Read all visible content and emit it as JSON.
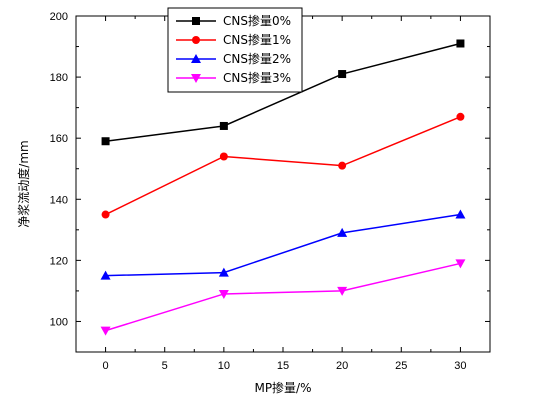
{
  "chart_data": {
    "type": "line",
    "xlabel": "MP掺量/%",
    "ylabel": "净浆流动度/mm",
    "xlim": [
      -2.5,
      32.5
    ],
    "ylim": [
      90,
      200
    ],
    "xticks": [
      0,
      5,
      10,
      15,
      20,
      25,
      30
    ],
    "yticks": [
      100,
      120,
      140,
      160,
      180,
      200
    ],
    "x": [
      0,
      10,
      20,
      30
    ],
    "series": [
      {
        "name": "CNS掺量0%",
        "values": [
          159,
          164,
          181,
          191
        ],
        "color": "#000000",
        "marker": "square"
      },
      {
        "name": "CNS掺量1%",
        "values": [
          135,
          154,
          151,
          167
        ],
        "color": "#ff0000",
        "marker": "circle"
      },
      {
        "name": "CNS掺量2%",
        "values": [
          115,
          116,
          129,
          135
        ],
        "color": "#0000ff",
        "marker": "triangle-up"
      },
      {
        "name": "CNS掺量3%",
        "values": [
          97,
          109,
          110,
          119
        ],
        "color": "#ff00ff",
        "marker": "triangle-down"
      }
    ],
    "legend_position": "top-center",
    "grid": false
  }
}
